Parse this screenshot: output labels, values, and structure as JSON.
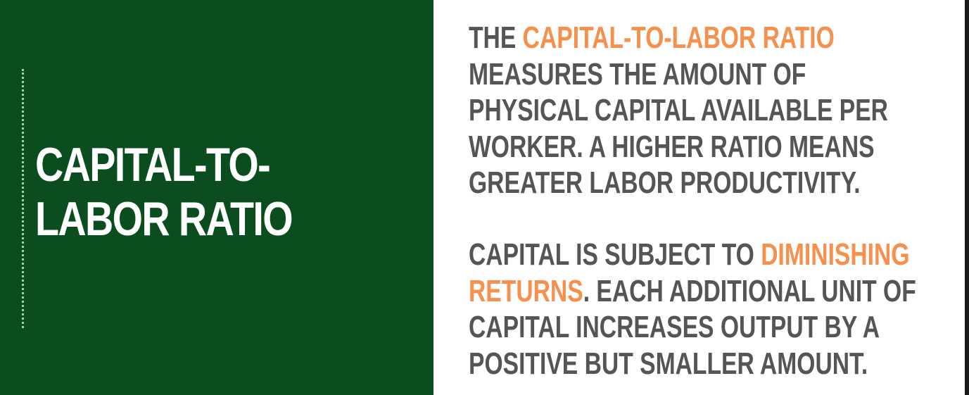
{
  "colors": {
    "left_background": "#0b4d1f",
    "accent": "#f6904c",
    "body_text": "#555555",
    "dotted_line": "#9fd69a"
  },
  "title": {
    "line1": "CAPITAL-TO-",
    "line2": "LABOR RATIO"
  },
  "paragraph1": {
    "l1_pre": "THE ",
    "l1_highlight": "CAPITAL-TO-LABOR RATIO",
    "l2": "MEASURES THE AMOUNT OF",
    "l3": "PHYSICAL CAPITAL AVAILABLE PER",
    "l4": "WORKER. A HIGHER RATIO MEANS",
    "l5": "GREATER LABOR PRODUCTIVITY."
  },
  "paragraph2": {
    "l1_pre": "CAPITAL IS SUBJECT TO ",
    "l1_highlight": "DIMINISHING",
    "l2_highlight": "RETURNS",
    "l2_post": ". EACH ADDITIONAL UNIT OF",
    "l3": "CAPITAL INCREASES OUTPUT BY A",
    "l4": "POSITIVE BUT SMALLER AMOUNT."
  }
}
